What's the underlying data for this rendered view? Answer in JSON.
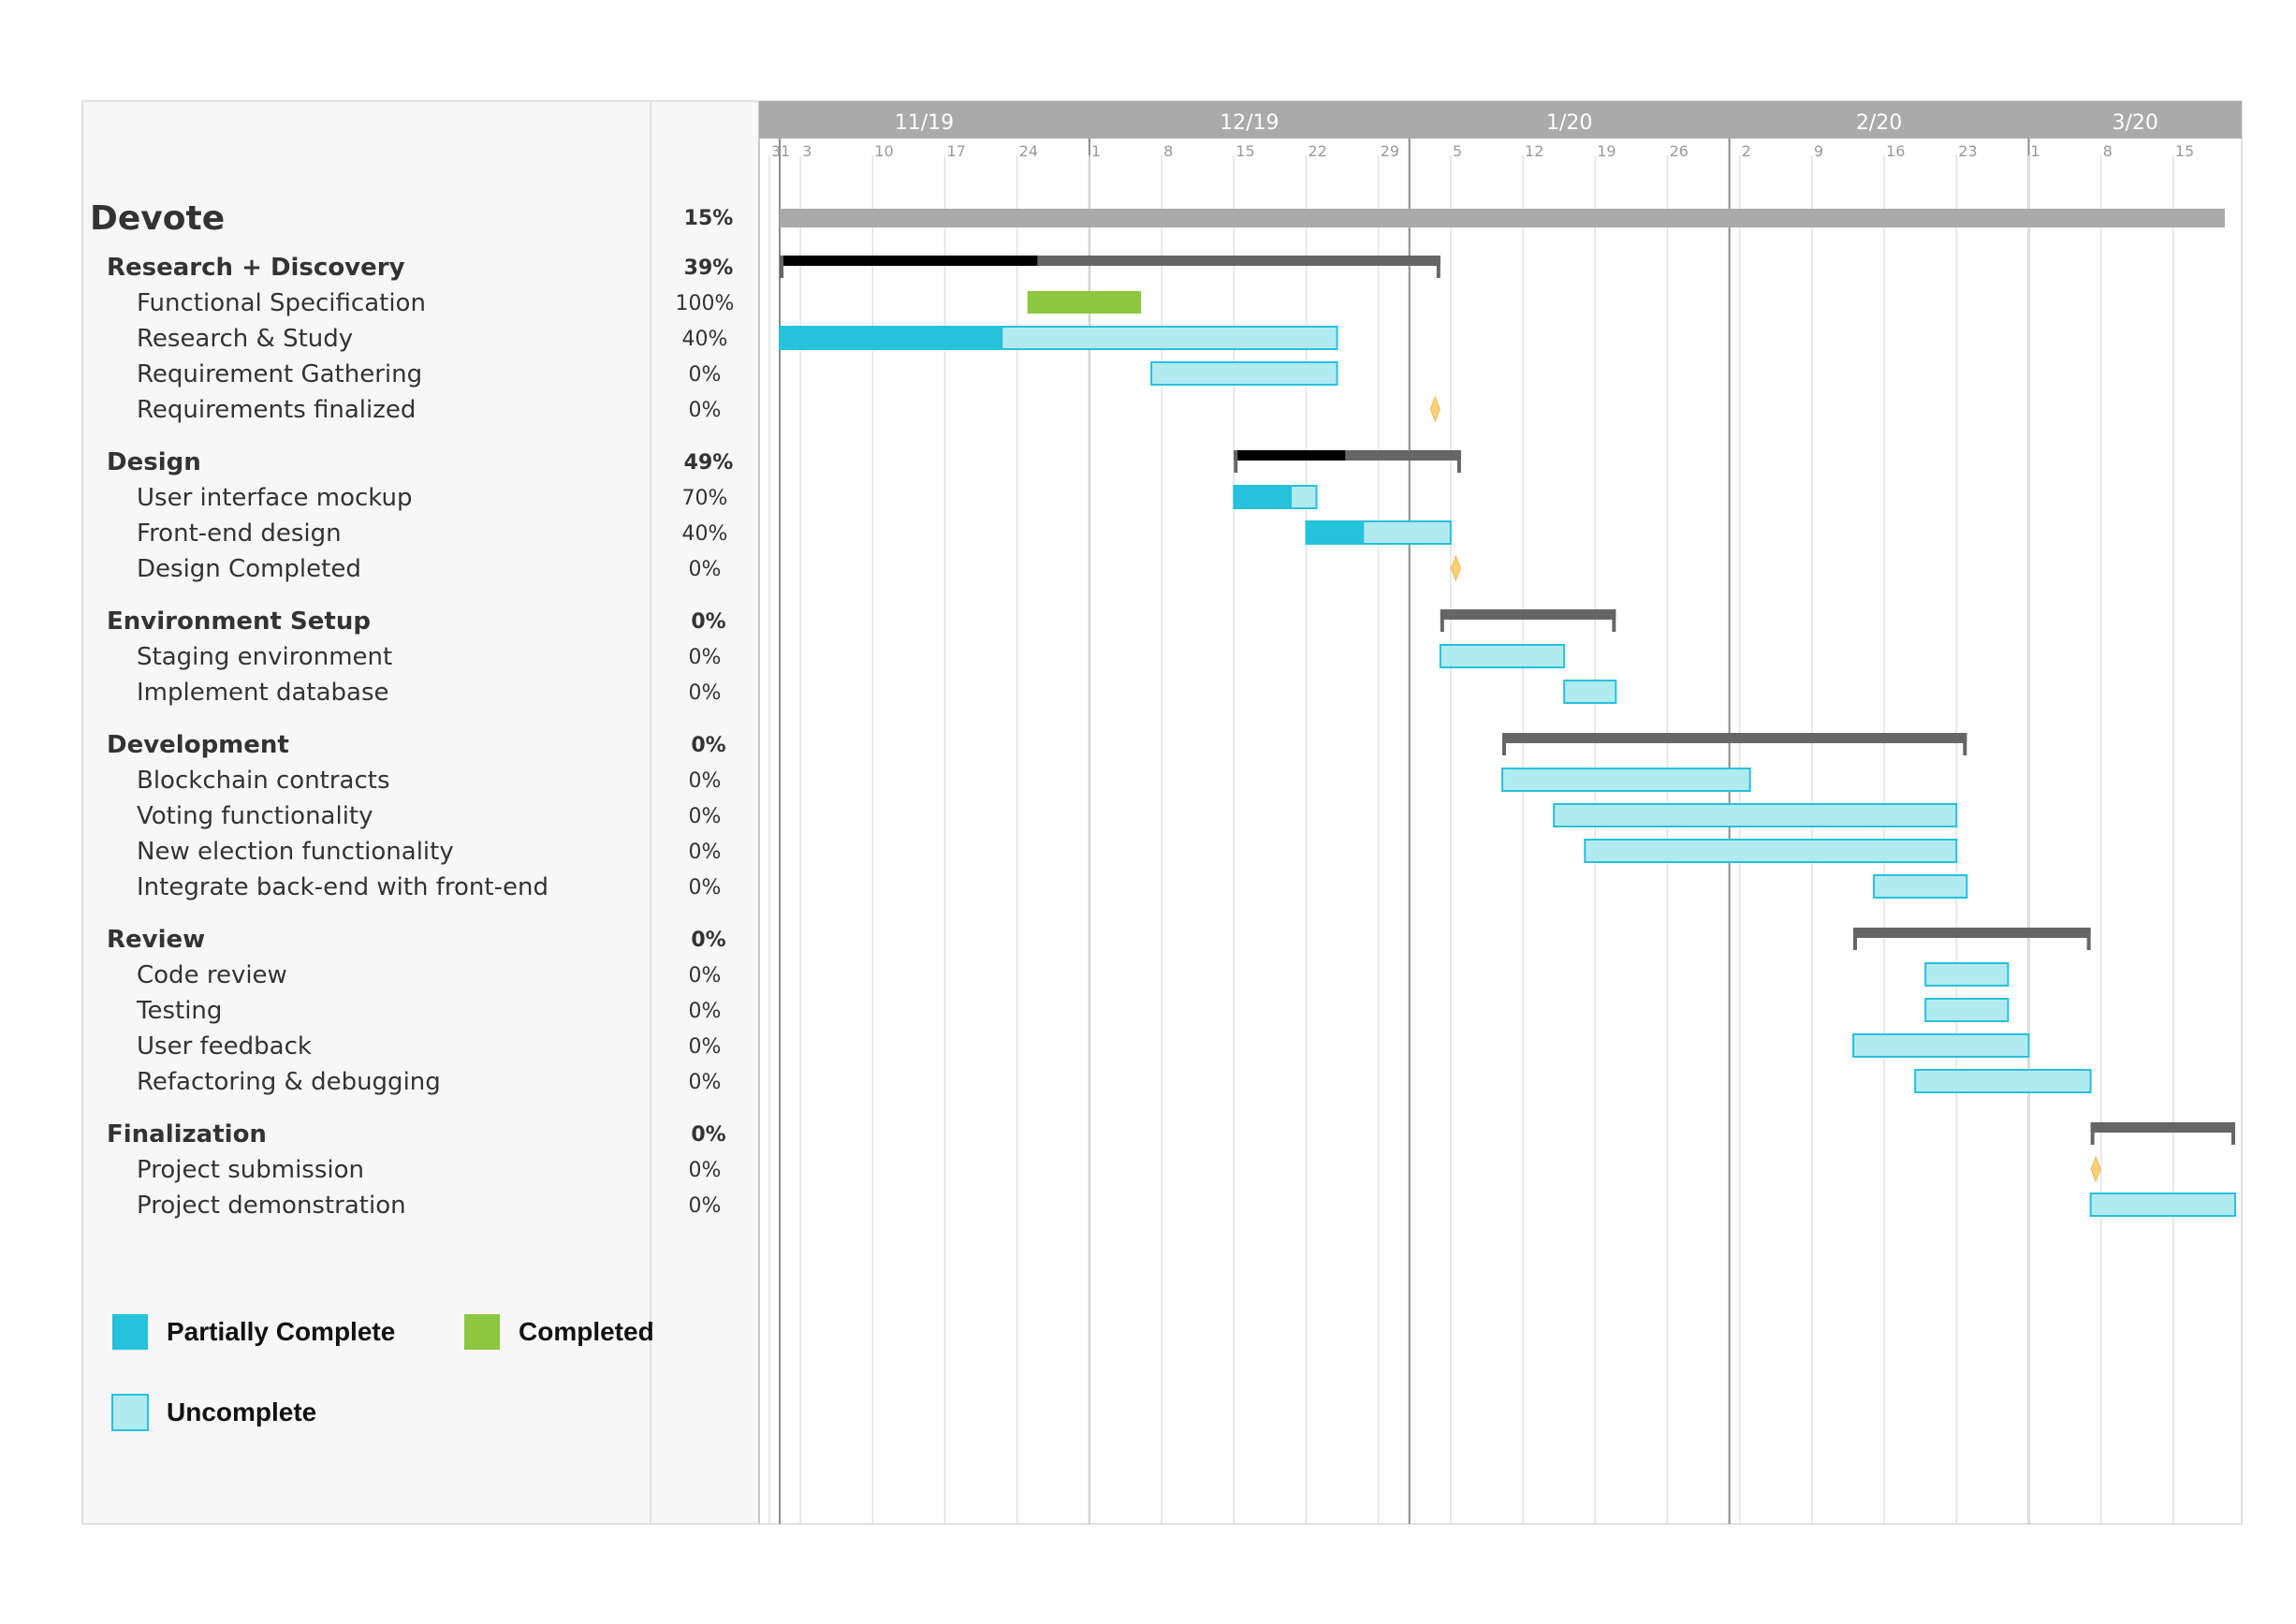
{
  "chart_data": {
    "type": "gantt",
    "project": {
      "name": "Devote",
      "progress": "15%",
      "start": 0,
      "end": 140
    },
    "timeline": {
      "months": [
        {
          "label": "11/19",
          "day": 0
        },
        {
          "label": "12/19",
          "day": 30
        },
        {
          "label": "1/20",
          "day": 61
        },
        {
          "label": "2/20",
          "day": 92
        },
        {
          "label": "3/20",
          "day": 121
        }
      ],
      "weeks": [
        {
          "label": "31",
          "day": -1
        },
        {
          "label": "3",
          "day": 2
        },
        {
          "label": "10",
          "day": 9
        },
        {
          "label": "17",
          "day": 16
        },
        {
          "label": "24",
          "day": 23
        },
        {
          "label": "1",
          "day": 30
        },
        {
          "label": "8",
          "day": 37
        },
        {
          "label": "15",
          "day": 44
        },
        {
          "label": "22",
          "day": 51
        },
        {
          "label": "29",
          "day": 58
        },
        {
          "label": "5",
          "day": 65
        },
        {
          "label": "12",
          "day": 72
        },
        {
          "label": "19",
          "day": 79
        },
        {
          "label": "26",
          "day": 86
        },
        {
          "label": "2",
          "day": 93
        },
        {
          "label": "9",
          "day": 100
        },
        {
          "label": "16",
          "day": 107
        },
        {
          "label": "23",
          "day": 114
        },
        {
          "label": "1",
          "day": 121
        },
        {
          "label": "8",
          "day": 128
        },
        {
          "label": "15",
          "day": 135
        }
      ],
      "day_range": [
        -1,
        141
      ]
    },
    "groups": [
      {
        "name": "Research + Discovery",
        "progress": "39%",
        "pct": 39,
        "start": 0,
        "end": 64,
        "tasks": [
          {
            "name": "Functional Specification",
            "progress": "100%",
            "pct": 100,
            "start": 24,
            "end": 35
          },
          {
            "name": "Research & Study",
            "progress": "40%",
            "pct": 40,
            "start": 0,
            "end": 54
          },
          {
            "name": "Requirement Gathering",
            "progress": "0%",
            "pct": 0,
            "start": 36,
            "end": 54
          },
          {
            "name": "Requirements finalized",
            "progress": "0%",
            "pct": 0,
            "milestone": true,
            "start": 63.5
          }
        ]
      },
      {
        "name": "Design",
        "progress": "49%",
        "pct": 49,
        "start": 44,
        "end": 66,
        "tasks": [
          {
            "name": "User interface mockup",
            "progress": "70%",
            "pct": 70,
            "start": 44,
            "end": 52
          },
          {
            "name": "Front-end design",
            "progress": "40%",
            "pct": 40,
            "start": 51,
            "end": 65
          },
          {
            "name": "Design Completed",
            "progress": "0%",
            "pct": 0,
            "milestone": true,
            "start": 65.5
          }
        ]
      },
      {
        "name": "Environment Setup",
        "progress": "0%",
        "pct": 0,
        "start": 64,
        "end": 81,
        "tasks": [
          {
            "name": "Staging environment",
            "progress": "0%",
            "pct": 0,
            "start": 64,
            "end": 76
          },
          {
            "name": "Implement database",
            "progress": "0%",
            "pct": 0,
            "start": 76,
            "end": 81
          }
        ]
      },
      {
        "name": "Development",
        "progress": "0%",
        "pct": 0,
        "start": 70,
        "end": 115,
        "tasks": [
          {
            "name": "Blockchain contracts",
            "progress": "0%",
            "pct": 0,
            "start": 70,
            "end": 94
          },
          {
            "name": "Voting functionality",
            "progress": "0%",
            "pct": 0,
            "start": 75,
            "end": 114
          },
          {
            "name": "New election functionality",
            "progress": "0%",
            "pct": 0,
            "start": 78,
            "end": 114
          },
          {
            "name": "Integrate back-end with front-end",
            "progress": "0%",
            "pct": 0,
            "start": 106,
            "end": 115
          }
        ]
      },
      {
        "name": "Review",
        "progress": "0%",
        "pct": 0,
        "start": 104,
        "end": 127,
        "tasks": [
          {
            "name": "Code review",
            "progress": "0%",
            "pct": 0,
            "start": 111,
            "end": 119
          },
          {
            "name": "Testing",
            "progress": "0%",
            "pct": 0,
            "start": 111,
            "end": 119
          },
          {
            "name": "User feedback",
            "progress": "0%",
            "pct": 0,
            "start": 104,
            "end": 121
          },
          {
            "name": "Refactoring & debugging",
            "progress": "0%",
            "pct": 0,
            "start": 110,
            "end": 127
          }
        ]
      },
      {
        "name": "Finalization",
        "progress": "0%",
        "pct": 0,
        "start": 127,
        "end": 141,
        "tasks": [
          {
            "name": "Project submission",
            "progress": "0%",
            "pct": 0,
            "milestone": true,
            "start": 127.5
          },
          {
            "name": "Project demonstration",
            "progress": "0%",
            "pct": 0,
            "start": 127,
            "end": 141
          }
        ]
      }
    ],
    "legend": [
      {
        "label": "Partially Complete",
        "color": "#26C1DB"
      },
      {
        "label": "Completed",
        "color": "#8DC63F"
      },
      {
        "label": "Uncomplete",
        "color": "#B2EAF2"
      }
    ],
    "colors": {
      "partial": "#26C1DB",
      "completed": "#8DC63F",
      "uncomplete": "#B2EAF2",
      "uncomplete_border": "#26C1DB",
      "group_bar": "#666666",
      "group_done": "#000000",
      "project_bar": "#AAAAAA",
      "header_bg": "#AAAAAA",
      "milestone": "#F9D27A"
    }
  }
}
